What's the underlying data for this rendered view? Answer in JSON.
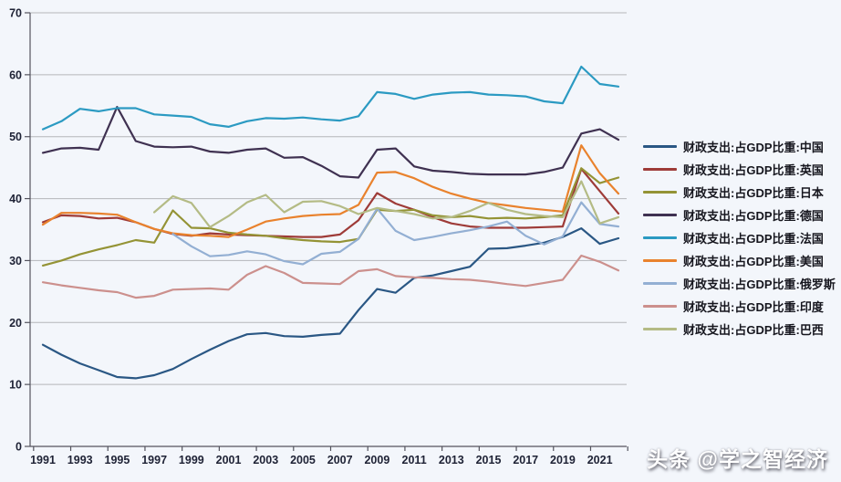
{
  "watermark": {
    "text": "头条 @学之智经济"
  },
  "axis": {
    "color": "#54545E",
    "grid_color": "#B4B6BA",
    "label_color": "#1E2235"
  },
  "chart_data": {
    "type": "line",
    "title": "",
    "xlabel": "",
    "ylabel": "",
    "ylim": [
      0,
      70
    ],
    "y_ticks": [
      0,
      10,
      20,
      30,
      40,
      50,
      60,
      70
    ],
    "grid": true,
    "legend_position": "right",
    "x": [
      1991,
      1992,
      1993,
      1994,
      1995,
      1996,
      1997,
      1998,
      1999,
      2000,
      2001,
      2002,
      2003,
      2004,
      2005,
      2006,
      2007,
      2008,
      2009,
      2010,
      2011,
      2012,
      2013,
      2014,
      2015,
      2016,
      2017,
      2018,
      2019,
      2020,
      2021,
      2022
    ],
    "x_tick_labels": [
      "1991",
      "1993",
      "1995",
      "1997",
      "1999",
      "2001",
      "2003",
      "2005",
      "2007",
      "2009",
      "2011",
      "2013",
      "2015",
      "2017",
      "2019",
      "2021"
    ],
    "series": [
      {
        "id": "china",
        "name": "财政支出:占GDP比重:中国",
        "color": "#2A5784",
        "values": [
          16.4,
          14.8,
          13.4,
          12.3,
          11.2,
          11.0,
          11.5,
          12.5,
          14.1,
          15.6,
          17.0,
          18.1,
          18.3,
          17.8,
          17.7,
          18.0,
          18.2,
          22.0,
          25.4,
          24.8,
          27.2,
          27.6,
          28.3,
          29.0,
          31.9,
          32.0,
          32.4,
          32.9,
          33.8,
          35.2,
          32.7,
          33.6
        ]
      },
      {
        "id": "uk",
        "name": "财政支出:占GDP比重:英国",
        "color": "#9E3B38",
        "values": [
          36.2,
          37.3,
          37.2,
          36.8,
          36.9,
          36.2,
          35.1,
          34.3,
          34.0,
          34.4,
          34.2,
          34.1,
          34.0,
          33.9,
          33.8,
          33.8,
          34.2,
          36.5,
          40.9,
          39.2,
          38.2,
          37.0,
          36.0,
          35.5,
          35.3,
          35.3,
          35.3,
          35.4,
          35.5,
          44.8,
          41.2,
          37.6
        ]
      },
      {
        "id": "japan",
        "name": "财政支出:占GDP比重:日本",
        "color": "#949335",
        "values": [
          29.2,
          30.0,
          31.0,
          31.8,
          32.5,
          33.3,
          32.9,
          38.1,
          35.3,
          35.2,
          34.5,
          34.2,
          34.0,
          33.6,
          33.3,
          33.1,
          33.0,
          33.5,
          38.2,
          38.0,
          38.2,
          37.3,
          37.0,
          37.2,
          36.8,
          36.9,
          36.8,
          37.0,
          37.3,
          44.9,
          42.5,
          43.4
        ]
      },
      {
        "id": "germany",
        "name": "财政支出:占GDP比重:德国",
        "color": "#3F3151",
        "values": [
          47.4,
          48.1,
          48.2,
          47.9,
          54.8,
          49.3,
          48.4,
          48.3,
          48.4,
          47.6,
          47.4,
          47.9,
          48.1,
          46.6,
          46.7,
          45.3,
          43.6,
          43.4,
          47.9,
          48.1,
          45.2,
          44.5,
          44.3,
          44.0,
          43.9,
          43.9,
          43.9,
          44.3,
          45.0,
          50.5,
          51.2,
          49.5
        ]
      },
      {
        "id": "france",
        "name": "财政支出:占GDP比重:法国",
        "color": "#2B9AC2",
        "values": [
          51.2,
          52.5,
          54.5,
          54.1,
          54.6,
          54.6,
          53.6,
          53.4,
          53.2,
          52.0,
          51.6,
          52.5,
          53.0,
          52.9,
          53.1,
          52.8,
          52.6,
          53.3,
          57.2,
          56.9,
          56.1,
          56.8,
          57.1,
          57.2,
          56.8,
          56.7,
          56.5,
          55.7,
          55.4,
          61.3,
          58.5,
          58.1
        ]
      },
      {
        "id": "us",
        "name": "财政支出:占GDP比重:美国",
        "color": "#E9822D",
        "values": [
          35.8,
          37.7,
          37.7,
          37.6,
          37.4,
          36.2,
          35.1,
          34.4,
          34.1,
          34.0,
          33.8,
          35.0,
          36.3,
          36.8,
          37.2,
          37.4,
          37.5,
          39.0,
          44.2,
          44.3,
          43.3,
          41.9,
          40.8,
          40.0,
          39.3,
          38.9,
          38.5,
          38.2,
          37.9,
          48.6,
          44.1,
          40.8
        ]
      },
      {
        "id": "russia",
        "name": "财政支出:占GDP比重:俄罗斯",
        "color": "#93AFD3",
        "values": [
          null,
          null,
          null,
          null,
          null,
          null,
          null,
          34.3,
          32.3,
          30.7,
          30.9,
          31.5,
          31.0,
          29.9,
          29.4,
          31.1,
          31.4,
          33.5,
          38.4,
          34.8,
          33.3,
          33.8,
          34.4,
          34.9,
          35.5,
          36.3,
          34.0,
          32.6,
          33.9,
          39.4,
          35.9,
          35.5
        ]
      },
      {
        "id": "india",
        "name": "财政支出:占GDP比重:印度",
        "color": "#CC908D",
        "values": [
          26.5,
          26.0,
          25.6,
          25.2,
          24.9,
          24.0,
          24.3,
          25.3,
          25.4,
          25.5,
          25.3,
          27.7,
          29.1,
          28.0,
          26.4,
          26.3,
          26.2,
          28.3,
          28.6,
          27.5,
          27.3,
          27.2,
          27.0,
          26.9,
          26.6,
          26.2,
          25.9,
          26.4,
          26.9,
          30.8,
          29.8,
          28.4
        ]
      },
      {
        "id": "brazil",
        "name": "财政支出:占GDP比重:巴西",
        "color": "#B4BB85",
        "values": [
          null,
          null,
          null,
          null,
          null,
          null,
          37.8,
          40.4,
          39.3,
          35.4,
          37.2,
          39.4,
          40.6,
          37.8,
          39.5,
          39.6,
          38.8,
          37.5,
          38.5,
          38.0,
          37.5,
          36.8,
          37.0,
          38.0,
          39.3,
          38.2,
          37.5,
          37.2,
          37.0,
          42.8,
          36.0,
          37.0
        ]
      }
    ]
  }
}
